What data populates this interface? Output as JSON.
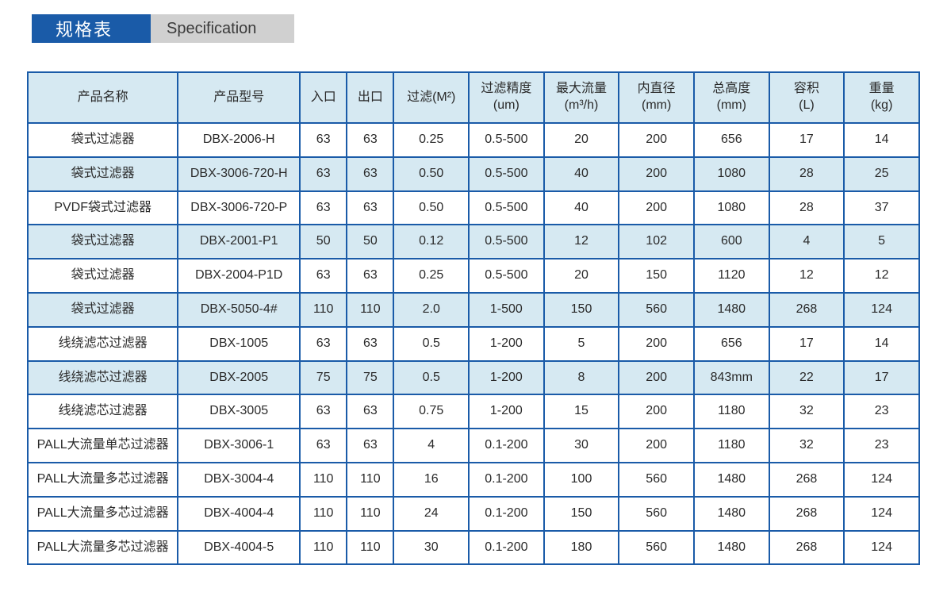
{
  "colors": {
    "title_bg": "#1a5ba8",
    "title_fg": "#ffffff",
    "subtitle_bg": "#d0d0d0",
    "subtitle_fg": "#3a3a3a",
    "border": "#1a5ba8",
    "header_bg": "#d6e9f2",
    "alt_row_bg": "#d6e9f2",
    "text": "#2a2a2a",
    "page_bg": "#ffffff"
  },
  "title": {
    "cn": "规格表",
    "en": "Specification"
  },
  "table": {
    "col_widths_pct": [
      16,
      13,
      5,
      5,
      8,
      8,
      8,
      8,
      8,
      8,
      8
    ],
    "columns": [
      {
        "line1": "产品名称",
        "line2": ""
      },
      {
        "line1": "产品型号",
        "line2": ""
      },
      {
        "line1": "入口",
        "line2": ""
      },
      {
        "line1": "出口",
        "line2": ""
      },
      {
        "line1": "过滤(M²)",
        "line2": ""
      },
      {
        "line1": "过滤精度",
        "line2": "(um)"
      },
      {
        "line1": "最大流量",
        "line2": "(m³/h)"
      },
      {
        "line1": "内直径",
        "line2": "(mm)"
      },
      {
        "line1": "总高度",
        "line2": "(mm)"
      },
      {
        "line1": "容积",
        "line2": "(L)"
      },
      {
        "line1": "重量",
        "line2": "(kg)"
      }
    ],
    "rows": [
      {
        "alt": false,
        "cells": [
          "袋式过滤器",
          "DBX-2006-H",
          "63",
          "63",
          "0.25",
          "0.5-500",
          "20",
          "200",
          "656",
          "17",
          "14"
        ]
      },
      {
        "alt": true,
        "cells": [
          "袋式过滤器",
          "DBX-3006-720-H",
          "63",
          "63",
          "0.50",
          "0.5-500",
          "40",
          "200",
          "1080",
          "28",
          "25"
        ]
      },
      {
        "alt": false,
        "cells": [
          "PVDF袋式过滤器",
          "DBX-3006-720-P",
          "63",
          "63",
          "0.50",
          "0.5-500",
          "40",
          "200",
          "1080",
          "28",
          "37"
        ]
      },
      {
        "alt": true,
        "cells": [
          "袋式过滤器",
          "DBX-2001-P1",
          "50",
          "50",
          "0.12",
          "0.5-500",
          "12",
          "102",
          "600",
          "4",
          "5"
        ]
      },
      {
        "alt": false,
        "cells": [
          "袋式过滤器",
          "DBX-2004-P1D",
          "63",
          "63",
          "0.25",
          "0.5-500",
          "20",
          "150",
          "1120",
          "12",
          "12"
        ]
      },
      {
        "alt": true,
        "cells": [
          "袋式过滤器",
          "DBX-5050-4#",
          "110",
          "110",
          "2.0",
          "1-500",
          "150",
          "560",
          "1480",
          "268",
          "124"
        ]
      },
      {
        "alt": false,
        "cells": [
          "线绕滤芯过滤器",
          "DBX-1005",
          "63",
          "63",
          "0.5",
          "1-200",
          "5",
          "200",
          "656",
          "17",
          "14"
        ]
      },
      {
        "alt": true,
        "cells": [
          "线绕滤芯过滤器",
          "DBX-2005",
          "75",
          "75",
          "0.5",
          "1-200",
          "8",
          "200",
          "843mm",
          "22",
          "17"
        ]
      },
      {
        "alt": false,
        "cells": [
          "线绕滤芯过滤器",
          "DBX-3005",
          "63",
          "63",
          "0.75",
          "1-200",
          "15",
          "200",
          "1180",
          "32",
          "23"
        ]
      },
      {
        "alt": false,
        "cells": [
          "PALL大流量单芯过滤器",
          "DBX-3006-1",
          "63",
          "63",
          "4",
          "0.1-200",
          "30",
          "200",
          "1180",
          "32",
          "23"
        ]
      },
      {
        "alt": false,
        "cells": [
          "PALL大流量多芯过滤器",
          "DBX-3004-4",
          "110",
          "110",
          "16",
          "0.1-200",
          "100",
          "560",
          "1480",
          "268",
          "124"
        ]
      },
      {
        "alt": false,
        "cells": [
          "PALL大流量多芯过滤器",
          "DBX-4004-4",
          "110",
          "110",
          "24",
          "0.1-200",
          "150",
          "560",
          "1480",
          "268",
          "124"
        ]
      },
      {
        "alt": false,
        "cells": [
          "PALL大流量多芯过滤器",
          "DBX-4004-5",
          "110",
          "110",
          "30",
          "0.1-200",
          "180",
          "560",
          "1480",
          "268",
          "124"
        ]
      }
    ]
  }
}
